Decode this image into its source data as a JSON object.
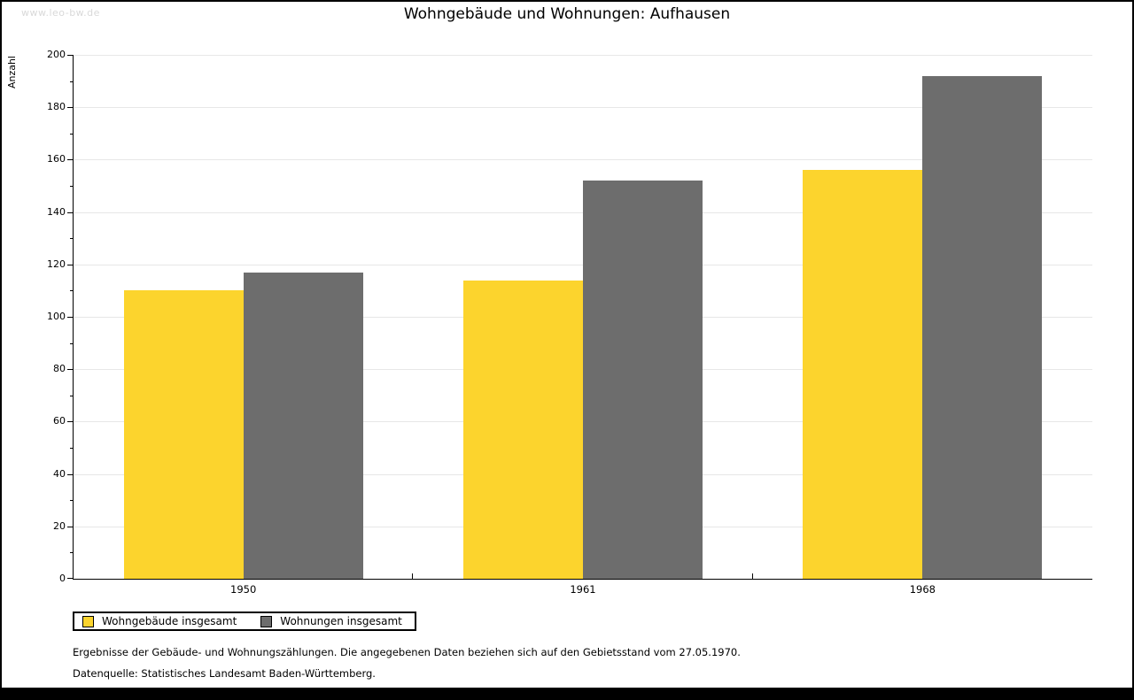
{
  "watermark": "www.leo-bw.de",
  "title": "Wohngebäude und Wohnungen: Aufhausen",
  "chart_data": {
    "type": "bar",
    "title": "Wohngebäude und Wohnungen: Aufhausen",
    "xlabel": "",
    "ylabel": "Anzahl",
    "categories": [
      "1950",
      "1961",
      "1968"
    ],
    "series": [
      {
        "name": "Wohngebäude insgesamt",
        "color": "#FCD42D",
        "values": [
          110,
          114,
          156
        ]
      },
      {
        "name": "Wohnungen insgesamt",
        "color": "#6D6D6D",
        "values": [
          117,
          152,
          192
        ]
      }
    ],
    "ylim": [
      0,
      200
    ],
    "y_major_step": 20,
    "y_minor_step": 10,
    "grid": "horizontal-major",
    "legend_position": "bottom-left"
  },
  "footnotes": [
    "Ergebnisse der Gebäude- und Wohnungszählungen. Die angegebenen Daten beziehen sich auf den Gebietsstand vom 27.05.1970.",
    "Datenquelle: Statistisches Landesamt Baden-Württemberg."
  ],
  "colors": {
    "gridline": "#E7E7E7",
    "watermark": "#D9D9D9",
    "axis": "#000000"
  }
}
